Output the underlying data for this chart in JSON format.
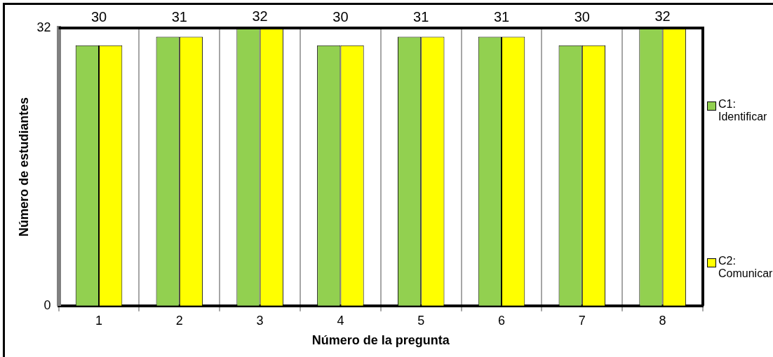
{
  "chart_data": {
    "type": "bar",
    "xlabel": "Número de la pregunta",
    "ylabel": "Número de estudiantes",
    "categories": [
      "1",
      "2",
      "3",
      "4",
      "5",
      "6",
      "7",
      "8"
    ],
    "series": [
      {
        "name": "C1: Identificar",
        "color": "#92d050",
        "values": [
          30,
          31,
          32,
          30,
          31,
          31,
          30,
          32
        ],
        "value_labels": [
          "30",
          "31",
          "32",
          "30",
          "31",
          "31",
          "30",
          "32"
        ]
      },
      {
        "name": "C2: Comunicar",
        "color": "#ffff00",
        "values": [
          30,
          31,
          32,
          30,
          31,
          31,
          30,
          32
        ]
      }
    ],
    "ylim": [
      0,
      32
    ],
    "yticks": [
      0,
      32
    ],
    "grid": "x",
    "legend": "right"
  }
}
